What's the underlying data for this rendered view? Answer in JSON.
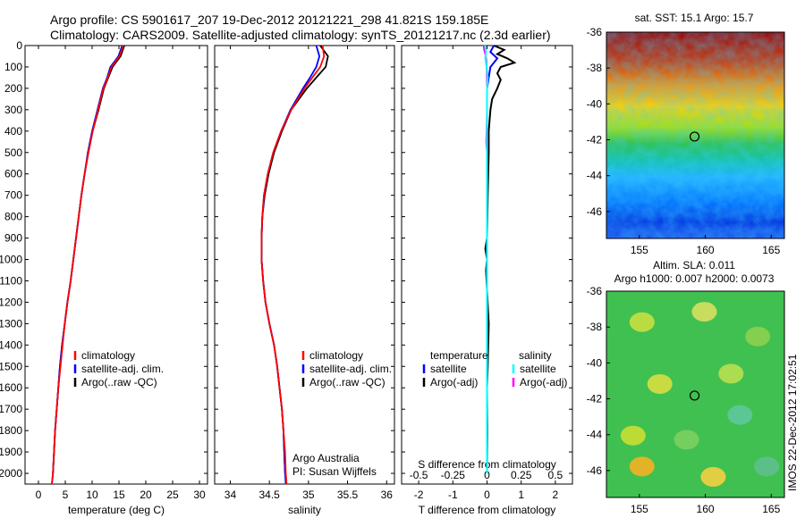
{
  "header": {
    "line1": "Argo profile: CS 5901617_207 19-Dec-2012 20121221_298 41.821S 159.185E",
    "line2": "Climatology: CARS2009. Satellite-adjusted climatology: synTS_20121217.nc (2.3d earlier)"
  },
  "side_text": "IMOS 22-Dec-2012 17:02:51",
  "colors": {
    "climatology": "#ff0000",
    "satellite": "#0000ff",
    "argo": "#000000",
    "sal_satellite": "#00ffff",
    "sal_argo": "#ff00ff"
  },
  "chart_data": [
    {
      "id": "temperature",
      "type": "line",
      "xlabel": "temperature (deg C)",
      "ylabel": "",
      "xlim": [
        -2.5,
        31.5
      ],
      "ylim": [
        2050,
        0
      ],
      "x_ticks": [
        0,
        5,
        10,
        15,
        20,
        25,
        30
      ],
      "y_ticks": [
        0,
        100,
        200,
        300,
        400,
        500,
        600,
        700,
        800,
        900,
        1000,
        1100,
        1200,
        1300,
        1400,
        1500,
        1600,
        1700,
        1800,
        1900,
        2000
      ],
      "legend": [
        "climatology",
        "satellite-adj. clim.",
        "Argo(..raw -QC)"
      ],
      "legend_position": "lower-center",
      "series": [
        {
          "name": "climatology",
          "color": "#ff0000",
          "depth": [
            0,
            50,
            100,
            150,
            200,
            300,
            400,
            500,
            600,
            700,
            800,
            900,
            1000,
            1100,
            1200,
            1300,
            1400,
            1500,
            1600,
            1700,
            1800,
            1900,
            2000,
            2050
          ],
          "values": [
            15.8,
            15.1,
            13.6,
            12.9,
            12.1,
            11.1,
            10.1,
            9.3,
            8.6,
            8.0,
            7.5,
            7.0,
            6.5,
            6.0,
            5.4,
            4.9,
            4.5,
            4.1,
            3.7,
            3.4,
            3.1,
            2.9,
            2.7,
            2.5
          ]
        },
        {
          "name": "satellite-adj. clim.",
          "color": "#0000ff",
          "depth": [
            0,
            50,
            100,
            150,
            200,
            300,
            400,
            500,
            600,
            700,
            800,
            900,
            1000,
            1100,
            1200,
            1300,
            1400,
            1500,
            1600,
            1700,
            1800,
            1900,
            2000,
            2050
          ],
          "values": [
            15.6,
            14.9,
            13.4,
            12.8,
            12.0,
            11.0,
            10.0,
            9.2,
            8.6,
            8.0,
            7.5,
            7.0,
            6.5,
            6.0,
            5.4,
            4.9,
            4.4,
            4.0,
            3.7,
            3.4,
            3.1,
            2.9,
            2.7,
            2.5
          ]
        },
        {
          "name": "Argo(..raw -QC)",
          "color": "#000000",
          "depth": [
            0,
            50,
            100,
            150,
            200,
            300,
            400,
            500,
            600,
            700,
            800,
            900,
            1000,
            1100,
            1200,
            1300,
            1400,
            1500,
            1600,
            1700,
            1800,
            1900,
            2000
          ],
          "values": [
            16.0,
            15.3,
            13.8,
            13.0,
            12.2,
            11.2,
            10.1,
            9.3,
            8.6,
            8.0,
            7.5,
            7.0,
            6.5,
            6.0,
            5.4,
            4.9,
            4.4,
            4.0,
            3.7,
            3.4,
            3.1,
            2.9,
            2.7
          ]
        }
      ]
    },
    {
      "id": "salinity",
      "type": "line",
      "xlabel": "salinity",
      "ylabel": "",
      "xlim": [
        33.8,
        36.1
      ],
      "ylim": [
        2050,
        0
      ],
      "x_ticks": [
        34,
        34.5,
        35,
        35.5,
        36
      ],
      "legend": [
        "climatology",
        "satellite-adj. clim.",
        "Argo(..raw -QC)"
      ],
      "legend_position": "lower-center",
      "annotation": [
        "Argo Australia",
        "PI: Susan Wijffels"
      ],
      "series": [
        {
          "name": "climatology",
          "color": "#ff0000",
          "depth": [
            0,
            50,
            100,
            150,
            200,
            300,
            400,
            500,
            600,
            700,
            800,
            900,
            1000,
            1100,
            1200,
            1300,
            1400,
            1500,
            1600,
            1700,
            1800,
            1900,
            2000,
            2050
          ],
          "values": [
            35.18,
            35.2,
            35.15,
            35.05,
            34.95,
            34.78,
            34.65,
            34.55,
            34.48,
            34.43,
            34.41,
            34.4,
            34.4,
            34.42,
            34.45,
            34.5,
            34.56,
            34.6,
            34.63,
            34.66,
            34.68,
            34.7,
            34.71,
            34.72
          ]
        },
        {
          "name": "satellite-adj. clim.",
          "color": "#0000ff",
          "depth": [
            0,
            50,
            100,
            150,
            200,
            300,
            400,
            500,
            600,
            700,
            800,
            900,
            1000,
            1100,
            1200,
            1300,
            1400,
            1500,
            1600,
            1700,
            1800,
            1900,
            2000,
            2050
          ],
          "values": [
            35.1,
            35.14,
            35.1,
            35.02,
            34.93,
            34.77,
            34.65,
            34.55,
            34.48,
            34.43,
            34.41,
            34.4,
            34.4,
            34.42,
            34.45,
            34.5,
            34.56,
            34.6,
            34.63,
            34.66,
            34.68,
            34.69,
            34.7,
            34.71
          ]
        },
        {
          "name": "Argo(..raw -QC)",
          "color": "#000000",
          "depth": [
            0,
            50,
            100,
            150,
            200,
            300,
            400,
            500,
            600,
            700,
            800,
            900,
            1000,
            1100,
            1200,
            1300,
            1400,
            1500,
            1600,
            1700,
            1800,
            1900,
            2000
          ],
          "values": [
            35.15,
            35.25,
            35.22,
            35.1,
            34.98,
            34.78,
            34.66,
            34.56,
            34.49,
            34.44,
            34.41,
            34.4,
            34.4,
            34.42,
            34.45,
            34.5,
            34.56,
            34.6,
            34.63,
            34.66,
            34.68,
            34.69,
            34.7
          ]
        }
      ]
    },
    {
      "id": "difference",
      "type": "line",
      "xlabel": "T difference from climatology",
      "xlabel_top": "S difference from climatology",
      "xlim": [
        -2.5,
        2.5
      ],
      "ylim": [
        2050,
        0
      ],
      "x_ticks": [
        -2,
        -1,
        0,
        1,
        2
      ],
      "x_ticks_top": [
        "-0.5",
        "-0.25",
        "0",
        "0.25",
        "0.5"
      ],
      "legend_temperature": {
        "title": "temperature",
        "entries": [
          "satellite",
          "Argo(-adj)"
        ]
      },
      "legend_salinity": {
        "title": "salinity",
        "entries": [
          "satellite",
          "Argo(-adj)"
        ]
      },
      "series": [
        {
          "name": "temperature satellite",
          "color": "#0000ff",
          "depth": [
            0,
            30,
            60,
            100,
            150,
            200,
            300,
            500,
            800,
            1000,
            1500,
            2000
          ],
          "values": [
            0.2,
            0.1,
            0.3,
            0.1,
            0.05,
            0.0,
            0.0,
            0.0,
            0.0,
            0.0,
            0.0,
            0.0
          ]
        },
        {
          "name": "temperature Argo(-adj)",
          "color": "#000000",
          "depth": [
            0,
            20,
            40,
            60,
            80,
            100,
            130,
            160,
            200,
            250,
            300,
            400,
            500,
            700,
            900,
            950,
            1000,
            1050,
            1300,
            1500,
            1600,
            1800,
            2000
          ],
          "values": [
            0.2,
            0.5,
            0.3,
            0.6,
            0.8,
            0.4,
            0.3,
            0.4,
            0.3,
            0.15,
            0.1,
            0.05,
            0.05,
            0.02,
            0.0,
            -0.05,
            0.0,
            -0.03,
            0.05,
            0.02,
            0.0,
            0.01,
            0.0
          ]
        },
        {
          "name": "salinity satellite",
          "color": "#00ffff",
          "depth": [
            0,
            30,
            60,
            100,
            150,
            200,
            300,
            500,
            1000,
            1500,
            2000
          ],
          "values": [
            -0.06,
            -0.03,
            -0.05,
            -0.01,
            0.02,
            0.0,
            0.0,
            0.0,
            0.0,
            0.0,
            0.0
          ]
        },
        {
          "name": "salinity Argo(-adj)",
          "color": "#ff00ff",
          "depth": [
            0,
            20,
            40,
            70,
            100,
            150,
            200,
            300,
            400,
            450,
            500,
            800,
            1000,
            1500,
            2000
          ],
          "values": [
            -0.1,
            -0.08,
            -0.05,
            -0.02,
            -0.01,
            0.0,
            0.0,
            0.0,
            -0.01,
            -0.02,
            0.0,
            0.0,
            0.0,
            0.0,
            0.0
          ]
        }
      ]
    },
    {
      "id": "sst_map",
      "type": "heatmap",
      "title": "sat. SST: 15.1 Argo: 15.7",
      "xlim": [
        152.5,
        166
      ],
      "ylim": [
        -47.5,
        -36
      ],
      "x_ticks": [
        155,
        160,
        165
      ],
      "y_ticks": [
        -36,
        -38,
        -40,
        -42,
        -44,
        -46
      ],
      "marker": {
        "lon": 159.185,
        "lat": -41.821
      }
    },
    {
      "id": "sla_map",
      "type": "heatmap",
      "title_lines": [
        "Altim. SLA: 0.011",
        "Argo h1000: 0.007 h2000: 0.0073"
      ],
      "xlim": [
        152.5,
        166
      ],
      "ylim": [
        -47.5,
        -36
      ],
      "x_ticks": [
        155,
        160,
        165
      ],
      "y_ticks": [
        -36,
        -38,
        -40,
        -42,
        -44,
        -46
      ],
      "marker": {
        "lon": 159.185,
        "lat": -41.821
      }
    }
  ]
}
